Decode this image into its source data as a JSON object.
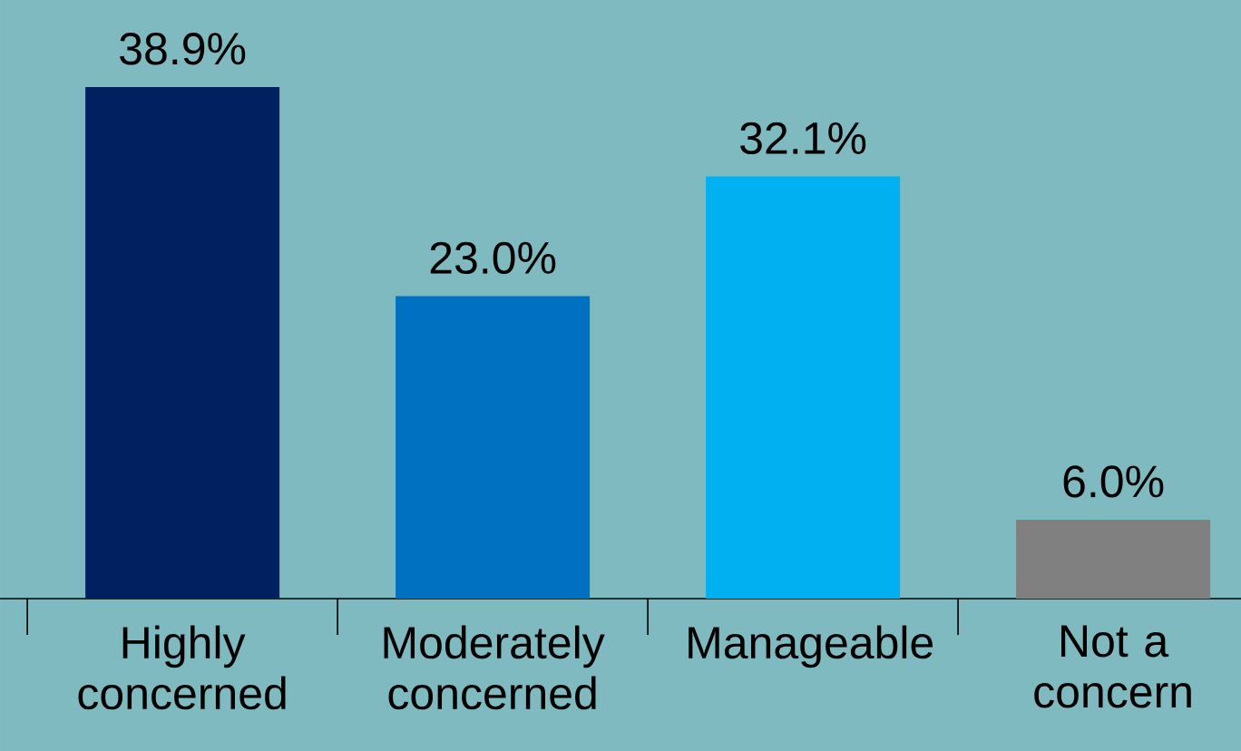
{
  "chart_data": {
    "type": "bar",
    "categories": [
      "Highly concerned",
      "Moderately concerned",
      "Manageable",
      "Not a concern"
    ],
    "values": [
      38.9,
      23.0,
      32.1,
      6.0
    ],
    "colors": [
      "#002060",
      "#0070c0",
      "#00b0f0",
      "#808080"
    ],
    "value_labels": [
      "38.9%",
      "23.0%",
      "32.1%",
      "6.0%"
    ],
    "tick_labels": "x"
  }
}
